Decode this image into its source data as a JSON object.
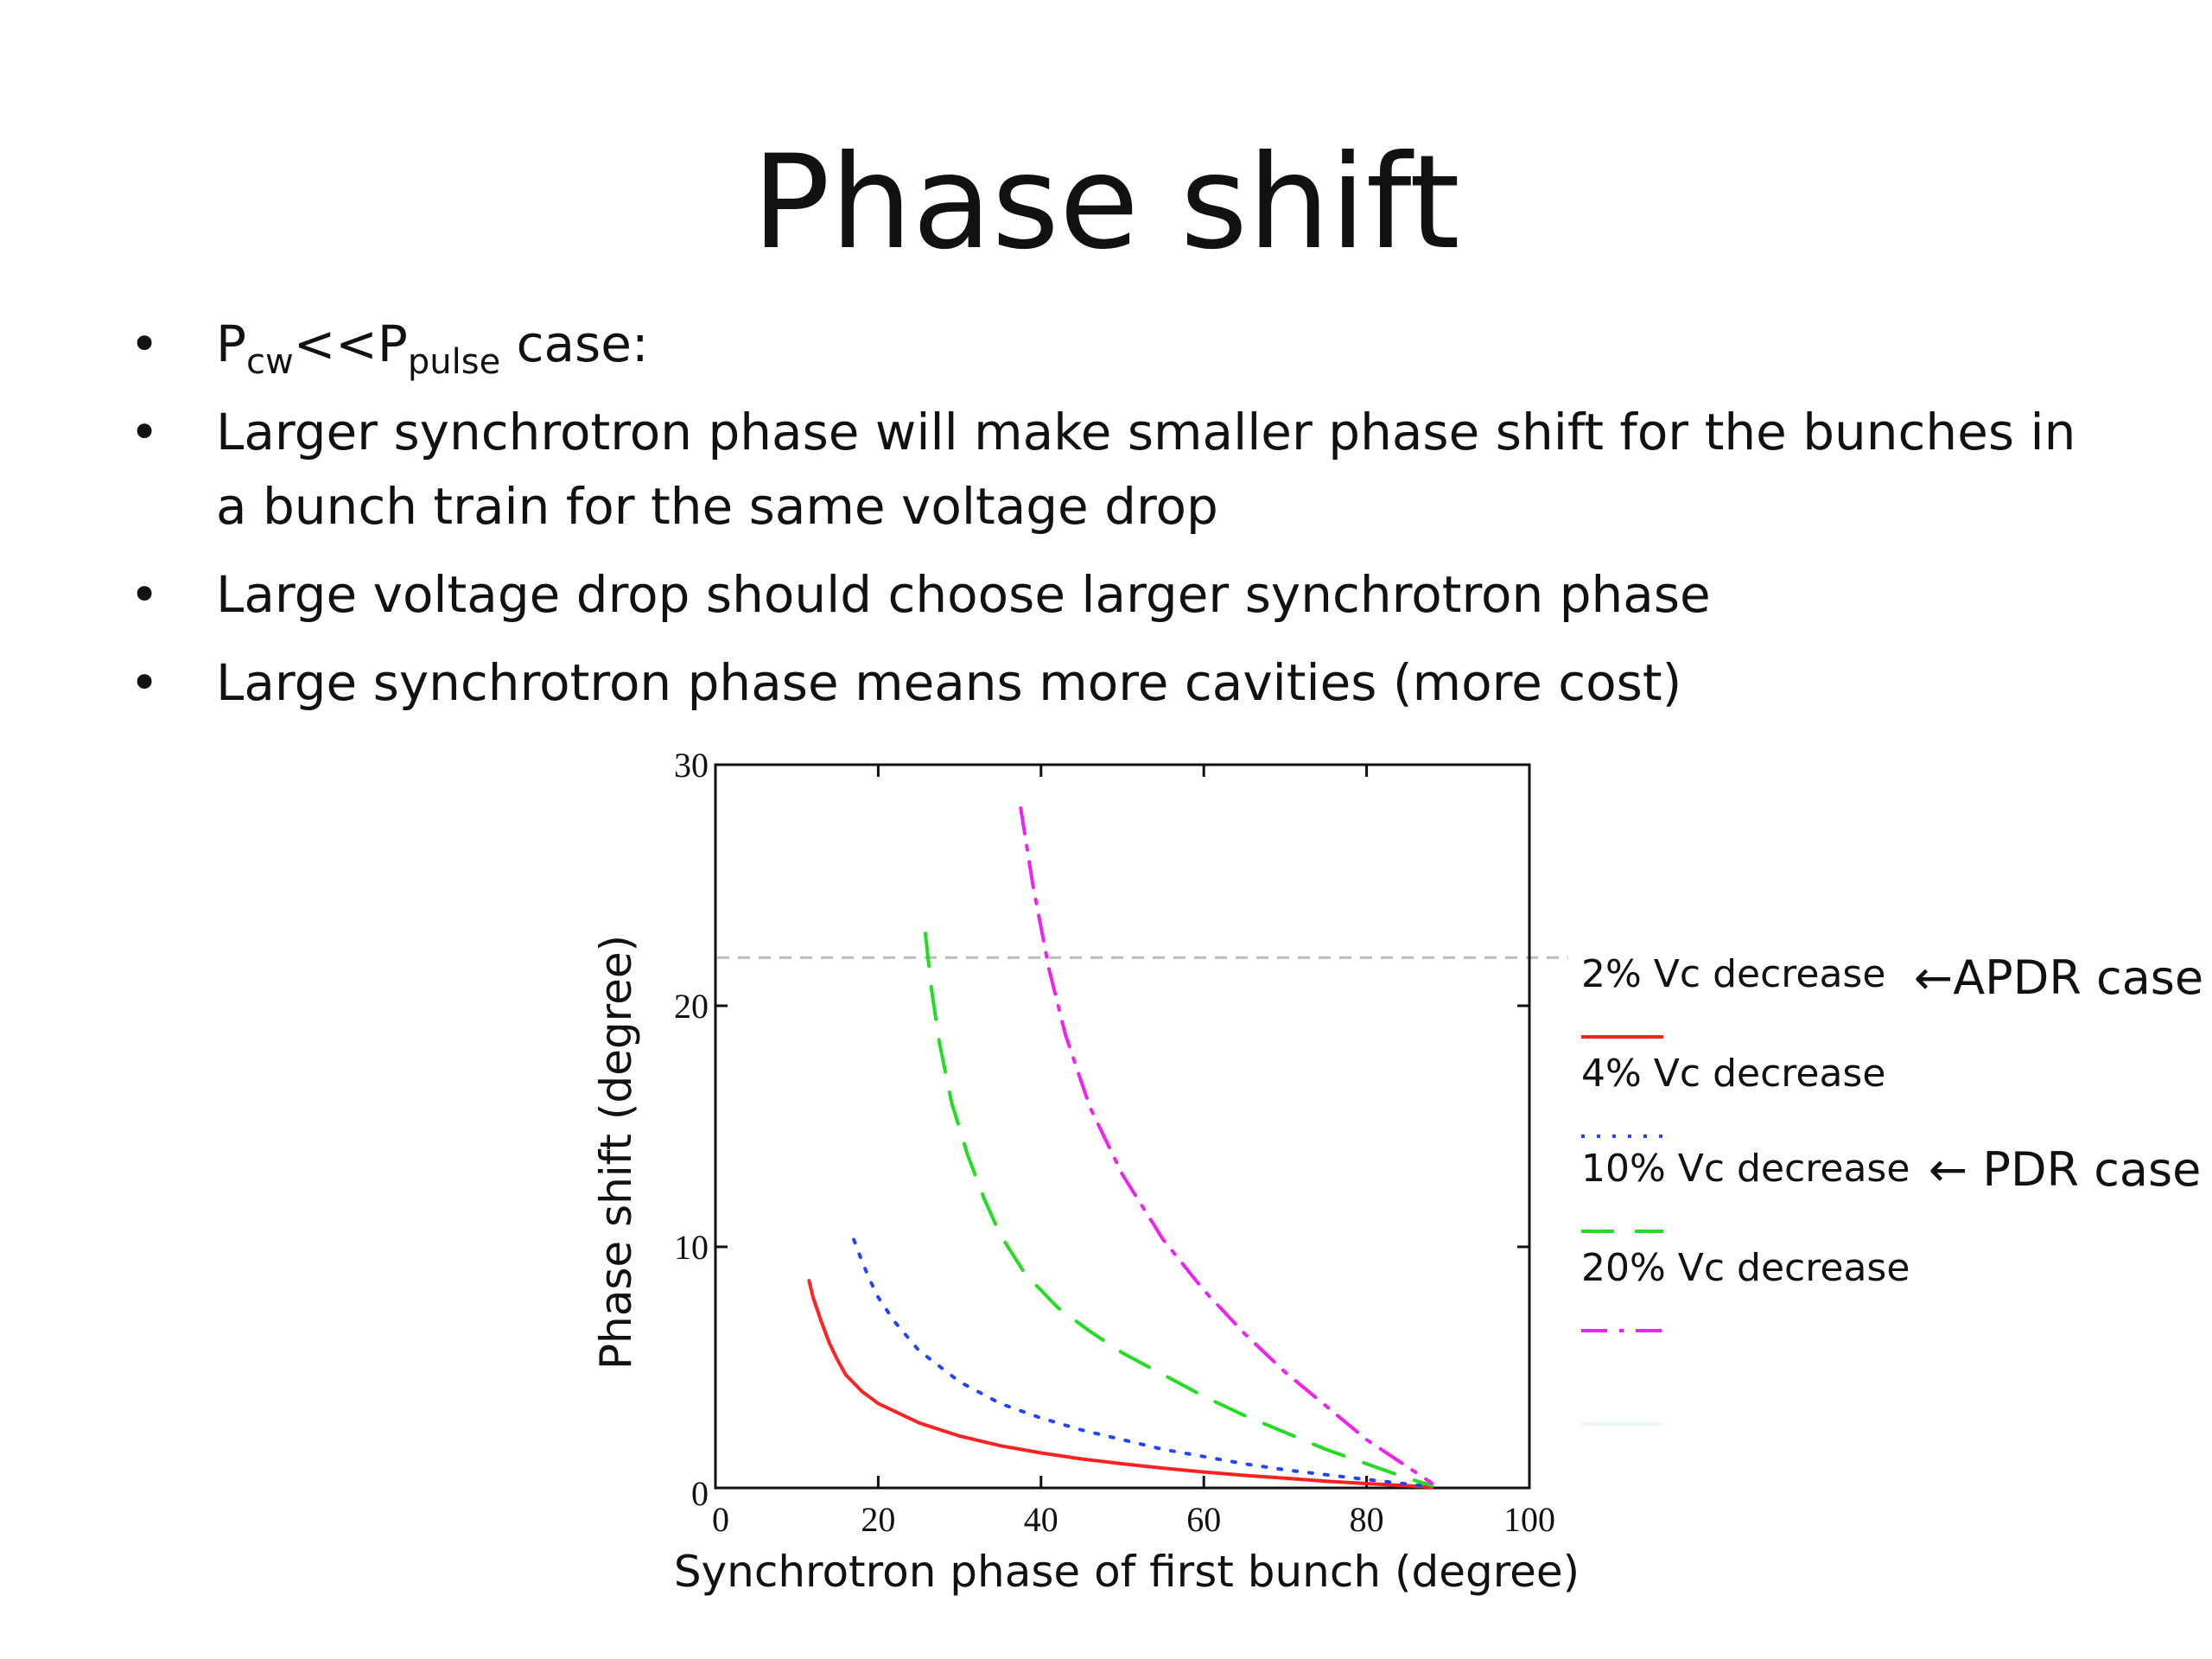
{
  "slide": {
    "title": "Phase shift",
    "bullets": [
      {
        "parts": [
          {
            "text": "P"
          },
          {
            "text": "cw",
            "sub": true
          },
          {
            "text": "<<P"
          },
          {
            "text": "pulse",
            "sub": true
          },
          {
            "text": " case:"
          }
        ]
      },
      {
        "parts": [
          {
            "text": "Larger synchrotron phase will make smaller phase shift for the bunches in a bunch train for the same voltage drop"
          }
        ]
      },
      {
        "parts": [
          {
            "text": "Large voltage drop should choose larger synchrotron phase"
          }
        ]
      },
      {
        "parts": [
          {
            "text": "Large synchrotron phase means more cavities (more cost)"
          }
        ]
      }
    ]
  },
  "annotations": {
    "apdr": "←APDR case",
    "pdr": "← PDR case"
  },
  "chart_data": {
    "type": "line",
    "title": "",
    "xlabel": "Synchrotron phase of first bunch (degree)",
    "ylabel": "Phase shift  (degree)",
    "xlim": [
      0,
      100
    ],
    "ylim": [
      0,
      30
    ],
    "xticks": [
      0,
      20,
      40,
      60,
      80,
      100
    ],
    "yticks": [
      0,
      10,
      20,
      30
    ],
    "grid": false,
    "legend_position": "right",
    "reference_line": {
      "y": 22,
      "style": "dashed",
      "color": "#bbbbbb"
    },
    "series": [
      {
        "name": "2% Vc decrease",
        "color": "#ff2222",
        "dash": "solid",
        "x": [
          11.5,
          12,
          13,
          14,
          15,
          16,
          18,
          20,
          25,
          30,
          35,
          40,
          45,
          50,
          55,
          60,
          65,
          70,
          75,
          80,
          85,
          88
        ],
        "y": [
          8.6,
          7.9,
          6.9,
          6.0,
          5.3,
          4.7,
          4.0,
          3.5,
          2.7,
          2.15,
          1.75,
          1.45,
          1.2,
          1.0,
          0.82,
          0.66,
          0.52,
          0.4,
          0.28,
          0.18,
          0.09,
          0.03
        ]
      },
      {
        "name": "4% Vc decrease",
        "color": "#2244ff",
        "dash": "dotted",
        "x": [
          17,
          18,
          19,
          20,
          22,
          25,
          30,
          35,
          40,
          45,
          50,
          55,
          60,
          65,
          70,
          75,
          80,
          85,
          88
        ],
        "y": [
          10.3,
          9.4,
          8.6,
          7.9,
          6.9,
          5.7,
          4.4,
          3.5,
          2.9,
          2.4,
          2.0,
          1.6,
          1.3,
          1.0,
          0.75,
          0.55,
          0.35,
          0.16,
          0.05
        ]
      },
      {
        "name": "10% Vc decrease",
        "color": "#22dd22",
        "dash": "dashed",
        "x": [
          25.8,
          26.5,
          27.5,
          29,
          31,
          33,
          35,
          38,
          42,
          46,
          50,
          55,
          60,
          65,
          70,
          75,
          80,
          85,
          88
        ],
        "y": [
          23.0,
          20.8,
          18.5,
          16.0,
          13.8,
          12.0,
          10.5,
          8.9,
          7.5,
          6.5,
          5.6,
          4.7,
          3.8,
          3.0,
          2.3,
          1.6,
          1.0,
          0.4,
          0.1
        ]
      },
      {
        "name": "20% Vc decrease",
        "color": "#ee22ee",
        "dash": "dashdot",
        "x": [
          37.5,
          39,
          41,
          43,
          46,
          50,
          55,
          60,
          65,
          70,
          75,
          80,
          84,
          88
        ],
        "y": [
          28.2,
          25.0,
          21.5,
          18.8,
          15.8,
          13.0,
          10.3,
          8.2,
          6.4,
          4.8,
          3.4,
          2.0,
          1.1,
          0.2
        ]
      }
    ]
  }
}
